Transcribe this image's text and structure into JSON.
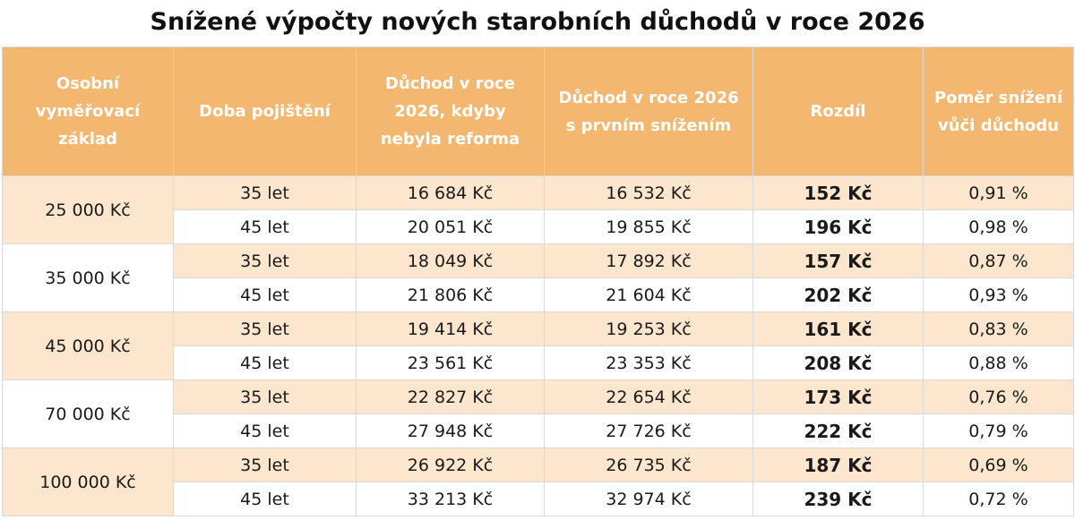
{
  "title": "Snížené výpočty nových starobních důchodů v roce 2026",
  "table": {
    "headers": [
      "Osobní vyměřovací základ",
      "Doba pojištění",
      "Důchod v roce 2026, kdyby nebyla reforma",
      "Důchod v roce 2026 s prvním snížením",
      "Rozdíl",
      "Poměr snížení vůči důchodu"
    ],
    "groups": [
      {
        "base": "25 000 Kč",
        "rows": [
          {
            "period": "35 let",
            "without_reform": "16 684 Kč",
            "with_reduction": "16 532 Kč",
            "difference": "152 Kč",
            "ratio": "0,91 %"
          },
          {
            "period": "45 let",
            "without_reform": "20 051 Kč",
            "with_reduction": "19 855 Kč",
            "difference": "196 Kč",
            "ratio": "0,98 %"
          }
        ]
      },
      {
        "base": "35 000 Kč",
        "rows": [
          {
            "period": "35 let",
            "without_reform": "18 049 Kč",
            "with_reduction": "17 892 Kč",
            "difference": "157 Kč",
            "ratio": "0,87 %"
          },
          {
            "period": "45 let",
            "without_reform": "21 806 Kč",
            "with_reduction": "21 604 Kč",
            "difference": "202 Kč",
            "ratio": "0,93 %"
          }
        ]
      },
      {
        "base": "45 000 Kč",
        "rows": [
          {
            "period": "35 let",
            "without_reform": "19 414 Kč",
            "with_reduction": "19 253 Kč",
            "difference": "161 Kč",
            "ratio": "0,83 %"
          },
          {
            "period": "45 let",
            "without_reform": "23 561 Kč",
            "with_reduction": "23 353 Kč",
            "difference": "208 Kč",
            "ratio": "0,88 %"
          }
        ]
      },
      {
        "base": "70 000 Kč",
        "rows": [
          {
            "period": "35 let",
            "without_reform": "22 827 Kč",
            "with_reduction": "22 654 Kč",
            "difference": "173 Kč",
            "ratio": "0,76 %"
          },
          {
            "period": "45 let",
            "without_reform": "27 948 Kč",
            "with_reduction": "27 726 Kč",
            "difference": "222 Kč",
            "ratio": "0,79 %"
          }
        ]
      },
      {
        "base": "100 000 Kč",
        "rows": [
          {
            "period": "35 let",
            "without_reform": "26 922 Kč",
            "with_reduction": "26 735 Kč",
            "difference": "187 Kč",
            "ratio": "0,69 %"
          },
          {
            "period": "45 let",
            "without_reform": "33 213 Kč",
            "with_reduction": "32 974 Kč",
            "difference": "239 Kč",
            "ratio": "0,72 %"
          }
        ]
      }
    ],
    "colors": {
      "header_bg": "#f4b76f",
      "header_text": "#ffffff",
      "row_tint": "#fce6cd",
      "row_white": "#ffffff",
      "border": "#d8d8d8"
    }
  }
}
